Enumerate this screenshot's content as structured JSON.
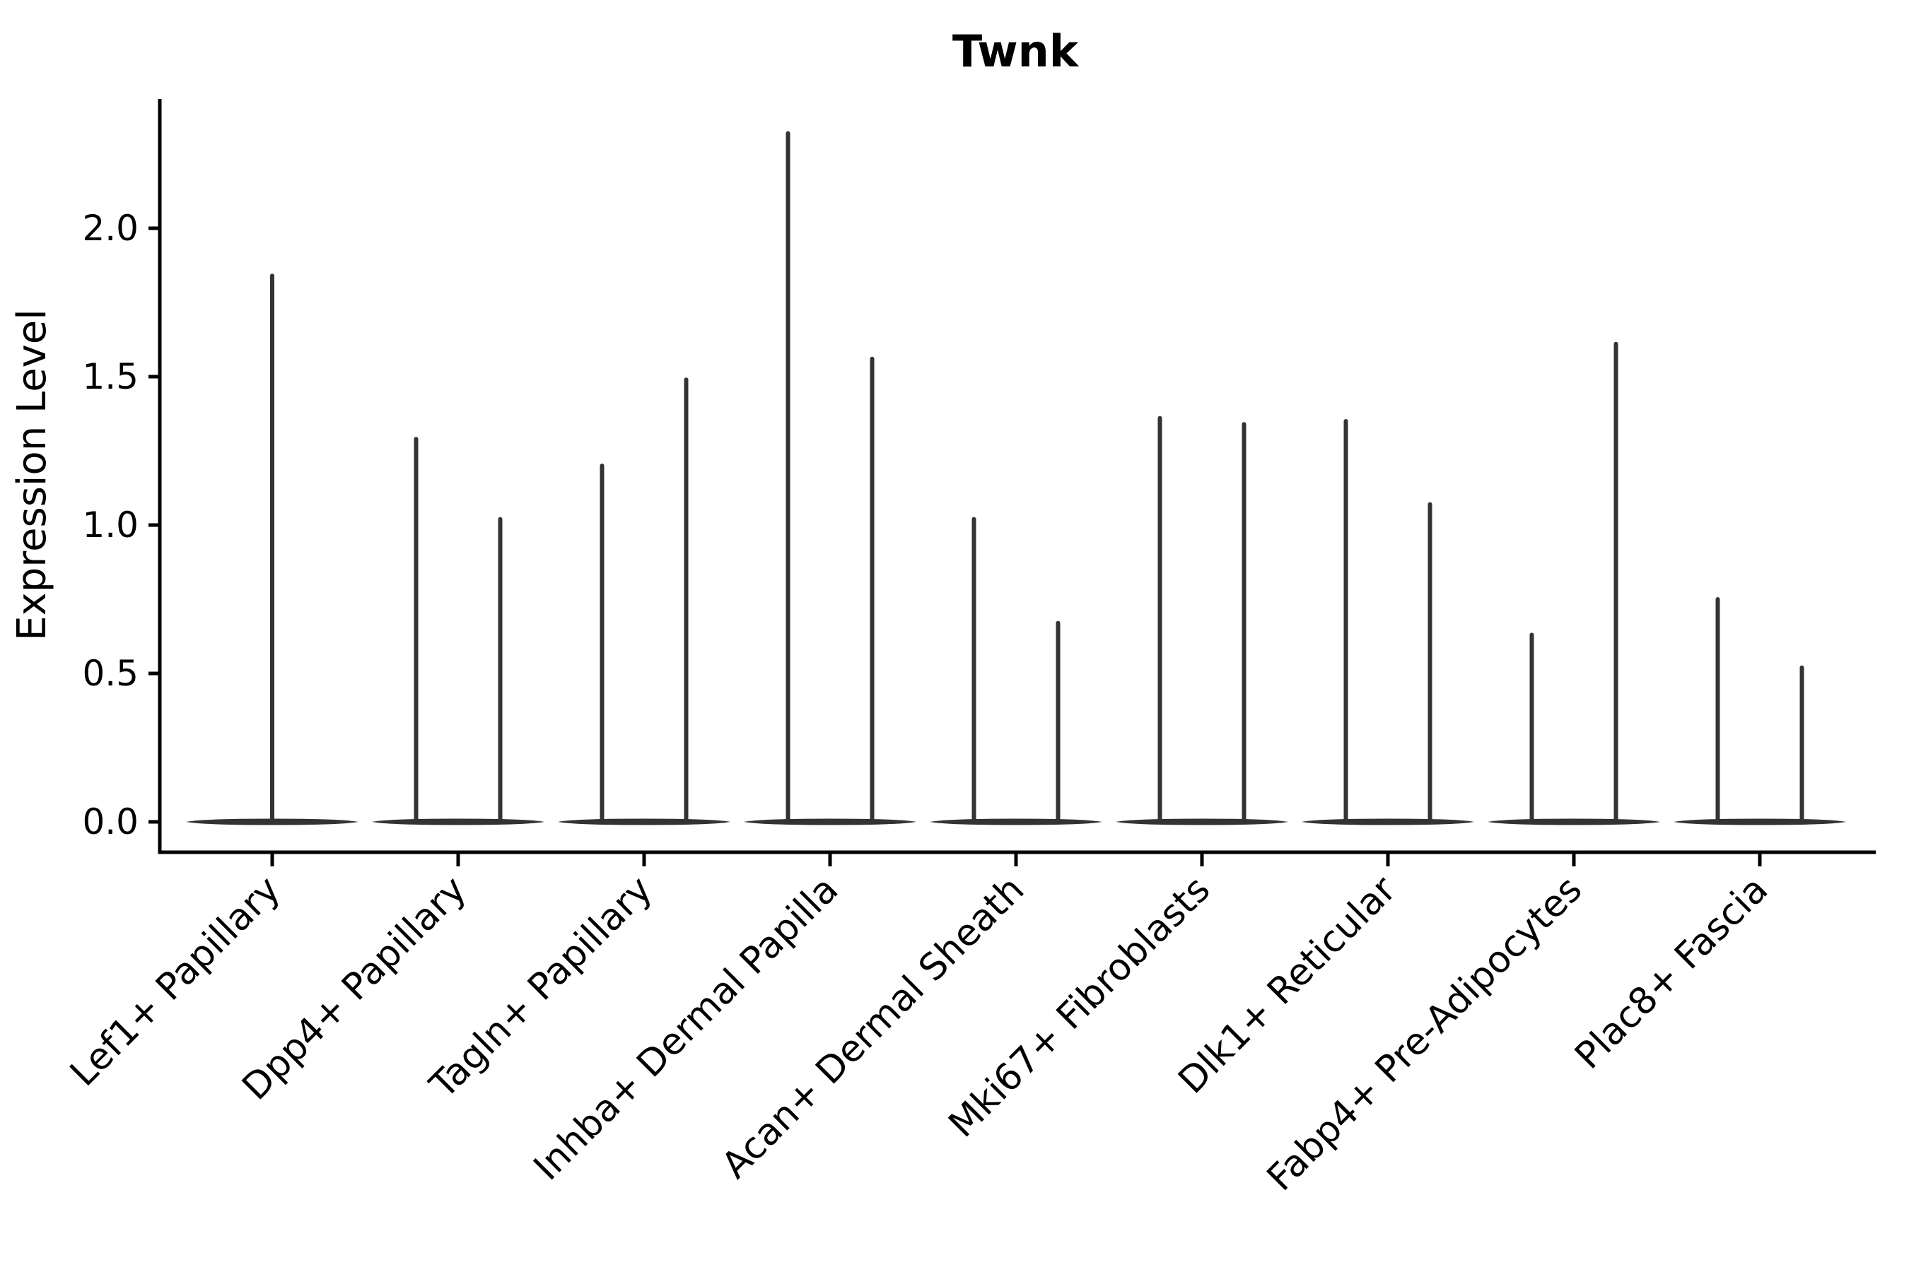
{
  "colors": {
    "violin": "#333333",
    "axis": "#000000",
    "text": "#000000",
    "background": "#ffffff"
  },
  "chart_data": {
    "type": "violin",
    "title": "Twnk",
    "xlabel": "",
    "ylabel": "Expression Level",
    "ylim": [
      0,
      2.44
    ],
    "yticks": [
      0.0,
      0.5,
      1.0,
      1.5,
      2.0
    ],
    "grid": false,
    "legend": null,
    "categories": [
      "Lef1+ Papillary",
      "Dpp4+ Papillary",
      "Tagln+ Papillary",
      "Inhba+ Dermal Papilla",
      "Acan+ Dermal Sheath",
      "Mki67+ Fibroblasts",
      "Dlk1+ Reticular",
      "Fabp4+ Pre-Adipocytes",
      "Plac8+ Fascia"
    ],
    "violins": [
      {
        "category": "Lef1+ Papillary",
        "baseline_value": 0.0,
        "spikes": [
          {
            "pos": "center",
            "max": 1.84
          }
        ]
      },
      {
        "category": "Dpp4+ Papillary",
        "baseline_value": 0.0,
        "spikes": [
          {
            "pos": "left",
            "max": 1.29
          },
          {
            "pos": "right",
            "max": 1.02
          }
        ]
      },
      {
        "category": "Tagln+ Papillary",
        "baseline_value": 0.0,
        "spikes": [
          {
            "pos": "left",
            "max": 1.2
          },
          {
            "pos": "right",
            "max": 1.49
          }
        ]
      },
      {
        "category": "Inhba+ Dermal Papilla",
        "baseline_value": 0.0,
        "spikes": [
          {
            "pos": "left",
            "max": 2.32
          },
          {
            "pos": "right",
            "max": 1.56
          }
        ]
      },
      {
        "category": "Acan+ Dermal Sheath",
        "baseline_value": 0.0,
        "spikes": [
          {
            "pos": "left",
            "max": 1.02
          },
          {
            "pos": "right",
            "max": 0.67
          }
        ]
      },
      {
        "category": "Mki67+ Fibroblasts",
        "baseline_value": 0.0,
        "spikes": [
          {
            "pos": "left",
            "max": 1.36
          },
          {
            "pos": "right",
            "max": 1.34
          }
        ]
      },
      {
        "category": "Dlk1+ Reticular",
        "baseline_value": 0.0,
        "spikes": [
          {
            "pos": "left",
            "max": 1.35
          },
          {
            "pos": "right",
            "max": 1.07
          }
        ]
      },
      {
        "category": "Fabp4+ Pre-Adipocytes",
        "baseline_value": 0.0,
        "spikes": [
          {
            "pos": "left",
            "max": 0.63
          },
          {
            "pos": "right",
            "max": 1.61
          }
        ]
      },
      {
        "category": "Plac8+ Fascia",
        "baseline_value": 0.0,
        "spikes": [
          {
            "pos": "left",
            "max": 0.75
          },
          {
            "pos": "right",
            "max": 0.52
          }
        ]
      }
    ]
  }
}
